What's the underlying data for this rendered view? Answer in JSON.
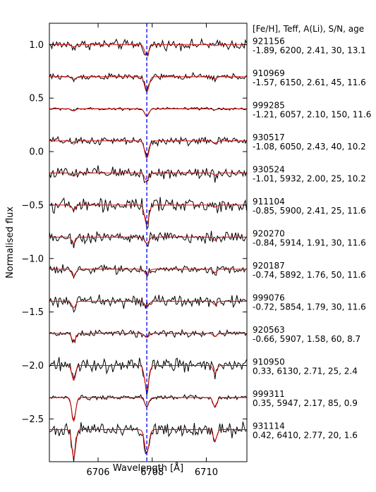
{
  "chart_data": {
    "type": "line",
    "xlabel": "Wavelength [Å]",
    "ylabel": "Normalised flux",
    "header": "[Fe/H], Teff, A(Li), S/N, age",
    "xlim": [
      6704.2,
      6711.5
    ],
    "ylim": [
      -2.9,
      1.2
    ],
    "xticks": [
      6706,
      6708,
      6710
    ],
    "xtick_labels": [
      "6706",
      "6708",
      "6710"
    ],
    "yticks": [
      1.0,
      0.5,
      0.0,
      -0.5,
      -1.0,
      -1.5,
      -2.0,
      -2.5
    ],
    "ytick_labels": [
      "1.0",
      "0.5",
      "0.0",
      "−0.5",
      "−1.0",
      "−1.5",
      "−2.0",
      "−2.5"
    ],
    "vline": {
      "x": 6707.8,
      "color": "#0000ee",
      "style": "dashed"
    },
    "colors": {
      "observed": "#000000",
      "model": "#dd0000"
    },
    "series": [
      {
        "name": "921156",
        "params": "-1.89, 6200, 2.41, 30, 13.1",
        "offset": 1.0,
        "li_depth": 0.1,
        "fe_depth": 0.02,
        "ca_depth": 0.01,
        "noise": 0.022
      },
      {
        "name": "910969",
        "params": "-1.57, 6150, 2.61, 45, 11.6",
        "offset": 0.7,
        "li_depth": 0.14,
        "fe_depth": 0.03,
        "ca_depth": 0.02,
        "noise": 0.014
      },
      {
        "name": "999285",
        "params": "-1.21, 6057, 2.10, 150, 11.6",
        "offset": 0.4,
        "li_depth": 0.07,
        "fe_depth": 0.02,
        "ca_depth": 0.01,
        "noise": 0.006
      },
      {
        "name": "930517",
        "params": "-1.08, 6050, 2.43, 40, 10.2",
        "offset": 0.1,
        "li_depth": 0.16,
        "fe_depth": 0.03,
        "ca_depth": 0.02,
        "noise": 0.018
      },
      {
        "name": "930524",
        "params": "-1.01, 5932, 2.00, 25, 10.2",
        "offset": -0.2,
        "li_depth": 0.07,
        "fe_depth": 0.03,
        "ca_depth": 0.02,
        "noise": 0.028
      },
      {
        "name": "911104",
        "params": "-0.85, 5900, 2.41, 25, 11.6",
        "offset": -0.5,
        "li_depth": 0.18,
        "fe_depth": 0.04,
        "ca_depth": 0.02,
        "noise": 0.03
      },
      {
        "name": "920270",
        "params": "-0.84, 5914, 1.91, 30, 11.6",
        "offset": -0.8,
        "li_depth": 0.06,
        "fe_depth": 0.06,
        "ca_depth": 0.03,
        "noise": 0.026
      },
      {
        "name": "920187",
        "params": "-0.74, 5892, 1.76, 50, 11.6",
        "offset": -1.1,
        "li_depth": 0.05,
        "fe_depth": 0.07,
        "ca_depth": 0.03,
        "noise": 0.018
      },
      {
        "name": "999076",
        "params": "-0.72, 5854, 1.79, 30, 11.6",
        "offset": -1.4,
        "li_depth": 0.05,
        "fe_depth": 0.06,
        "ca_depth": 0.03,
        "noise": 0.026
      },
      {
        "name": "920563",
        "params": "-0.66, 5907, 1.58, 60, 8.7",
        "offset": -1.7,
        "li_depth": 0.04,
        "fe_depth": 0.08,
        "ca_depth": 0.03,
        "noise": 0.014
      },
      {
        "name": "910950",
        "params": "0.33, 6130, 2.71, 25, 2.4",
        "offset": -2.0,
        "li_depth": 0.22,
        "fe_depth": 0.14,
        "ca_depth": 0.07,
        "noise": 0.03
      },
      {
        "name": "999311",
        "params": "0.35, 5947, 2.17, 85, 0.9",
        "offset": -2.3,
        "li_depth": 0.08,
        "fe_depth": 0.22,
        "ca_depth": 0.09,
        "noise": 0.01
      },
      {
        "name": "931114",
        "params": "0.42, 6410, 2.77, 20, 1.6",
        "offset": -2.6,
        "li_depth": 0.22,
        "fe_depth": 0.26,
        "ca_depth": 0.1,
        "noise": 0.032
      }
    ]
  }
}
